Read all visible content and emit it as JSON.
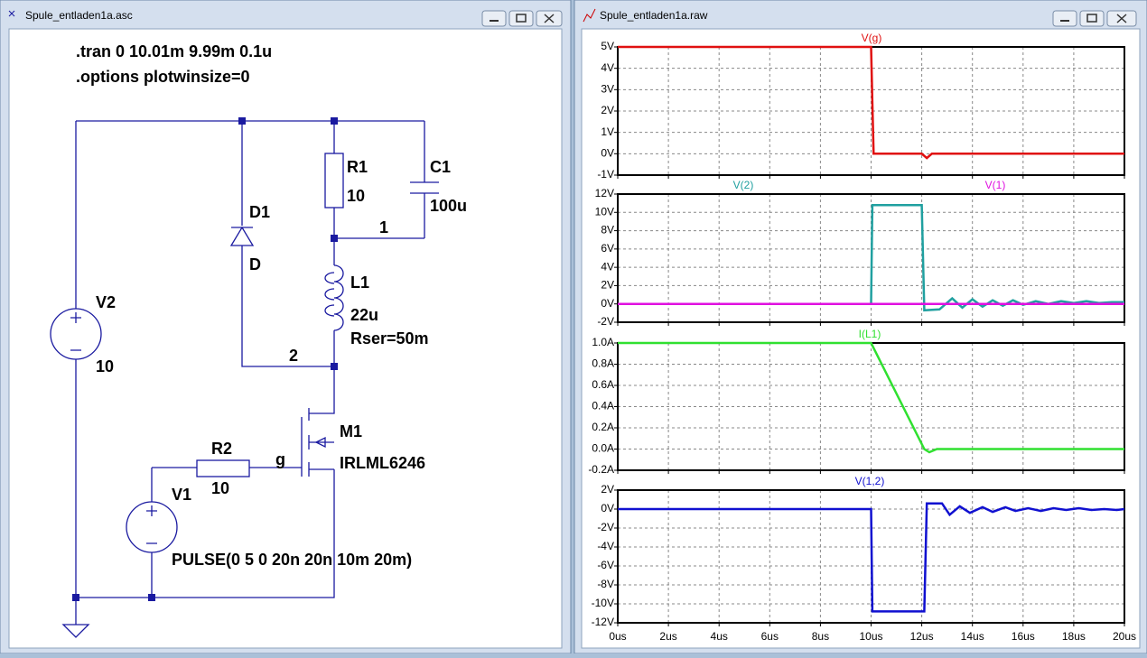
{
  "windows": [
    {
      "title": "Spule_entladen1a.asc"
    },
    {
      "title": "Spule_entladen1a.raw"
    }
  ],
  "schematic": {
    "labels": [
      ".tran 0 10.01m 9.99m 0.1u",
      ".options plotwinsize=0",
      "V2",
      "10",
      "D1",
      "D",
      "R1",
      "10",
      "C1",
      "100u",
      "1",
      "L1",
      "22u",
      "Rser=50m",
      "2",
      "M1",
      "IRLML6246",
      "g",
      "R2",
      "10",
      "V1",
      "PULSE(0 5 0 20n 20n 10m 20m)"
    ]
  },
  "waveform": {
    "xlim": [
      0,
      20
    ],
    "xticks": [
      {
        "value": 0,
        "label": "0us"
      },
      {
        "value": 2,
        "label": "2us"
      },
      {
        "value": 4,
        "label": "4us"
      },
      {
        "value": 6,
        "label": "6us"
      },
      {
        "value": 8,
        "label": "8us"
      },
      {
        "value": 10,
        "label": "10us"
      },
      {
        "value": 12,
        "label": "12us"
      },
      {
        "value": 14,
        "label": "14us"
      },
      {
        "value": 16,
        "label": "16us"
      },
      {
        "value": 18,
        "label": "18us"
      },
      {
        "value": 20,
        "label": "20us"
      }
    ],
    "plots": [
      {
        "ylim": [
          -1,
          5
        ],
        "yticks": [
          {
            "value": 5,
            "label": "5V"
          },
          {
            "value": 4,
            "label": "4V"
          },
          {
            "value": 3,
            "label": "3V"
          },
          {
            "value": 2,
            "label": "2V"
          },
          {
            "value": 1,
            "label": "1V"
          },
          {
            "value": 0,
            "label": "0V"
          },
          {
            "value": -1,
            "label": "-1V"
          }
        ],
        "series": [
          {
            "name": "V(g)",
            "color": "#e01010",
            "x": [
              0,
              10,
              10.05,
              10.1,
              12,
              12.2,
              12.4,
              20
            ],
            "values": [
              5,
              5,
              2.4,
              0,
              0,
              -0.2,
              0,
              0
            ]
          }
        ]
      },
      {
        "ylim": [
          -2,
          12
        ],
        "yticks": [
          {
            "value": 12,
            "label": "12V"
          },
          {
            "value": 10,
            "label": "10V"
          },
          {
            "value": 8,
            "label": "8V"
          },
          {
            "value": 6,
            "label": "6V"
          },
          {
            "value": 4,
            "label": "4V"
          },
          {
            "value": 2,
            "label": "2V"
          },
          {
            "value": 0,
            "label": "0V"
          },
          {
            "value": -2,
            "label": "-2V"
          }
        ],
        "series": [
          {
            "name": "V(2)",
            "color": "#20a0a0",
            "x": [
              0,
              10,
              10.05,
              12,
              12.1,
              12.7,
              13.2,
              13.6,
              14,
              14.4,
              14.8,
              15.2,
              15.6,
              16,
              16.5,
              17,
              17.5,
              18,
              18.5,
              19,
              19.5,
              20
            ],
            "values": [
              0,
              0,
              10.8,
              10.8,
              -0.7,
              -0.6,
              0.6,
              -0.4,
              0.5,
              -0.3,
              0.4,
              -0.2,
              0.4,
              -0.1,
              0.3,
              0,
              0.3,
              0.1,
              0.3,
              0.1,
              0.2,
              0.2
            ]
          },
          {
            "name": "V(1)",
            "color": "#e010e0",
            "x": [
              0,
              20
            ],
            "values": [
              0,
              0
            ]
          }
        ]
      },
      {
        "ylim": [
          -0.2,
          1.0
        ],
        "yticks": [
          {
            "value": 1.0,
            "label": "1.0A"
          },
          {
            "value": 0.8,
            "label": "0.8A"
          },
          {
            "value": 0.6,
            "label": "0.6A"
          },
          {
            "value": 0.4,
            "label": "0.4A"
          },
          {
            "value": 0.2,
            "label": "0.2A"
          },
          {
            "value": 0,
            "label": "0.0A"
          },
          {
            "value": -0.2,
            "label": "-0.2A"
          }
        ],
        "series": [
          {
            "name": "I(L1)",
            "color": "#30e030",
            "x": [
              0,
              10,
              12.1,
              12.3,
              12.6,
              20
            ],
            "values": [
              1.0,
              1.0,
              0,
              -0.03,
              0,
              0
            ]
          }
        ]
      },
      {
        "ylim": [
          -12,
          2
        ],
        "yticks": [
          {
            "value": 2,
            "label": "2V"
          },
          {
            "value": 0,
            "label": "0V"
          },
          {
            "value": -2,
            "label": "-2V"
          },
          {
            "value": -4,
            "label": "-4V"
          },
          {
            "value": -6,
            "label": "-6V"
          },
          {
            "value": -8,
            "label": "-8V"
          },
          {
            "value": -10,
            "label": "-10V"
          },
          {
            "value": -12,
            "label": "-12V"
          }
        ],
        "series": [
          {
            "name": "V(1,2)",
            "color": "#1010d0",
            "x": [
              0,
              10,
              10.05,
              12.1,
              12.2,
              12.8,
              13.1,
              13.5,
              13.9,
              14.4,
              14.8,
              15.3,
              15.7,
              16.2,
              16.7,
              17.2,
              17.7,
              18.2,
              18.7,
              19.2,
              19.7,
              20
            ],
            "values": [
              0,
              0,
              -10.8,
              -10.8,
              0.6,
              0.6,
              -0.6,
              0.3,
              -0.4,
              0.2,
              -0.3,
              0.2,
              -0.2,
              0.1,
              -0.2,
              0.1,
              -0.1,
              0.1,
              -0.1,
              0,
              -0.1,
              0
            ]
          }
        ]
      }
    ]
  }
}
